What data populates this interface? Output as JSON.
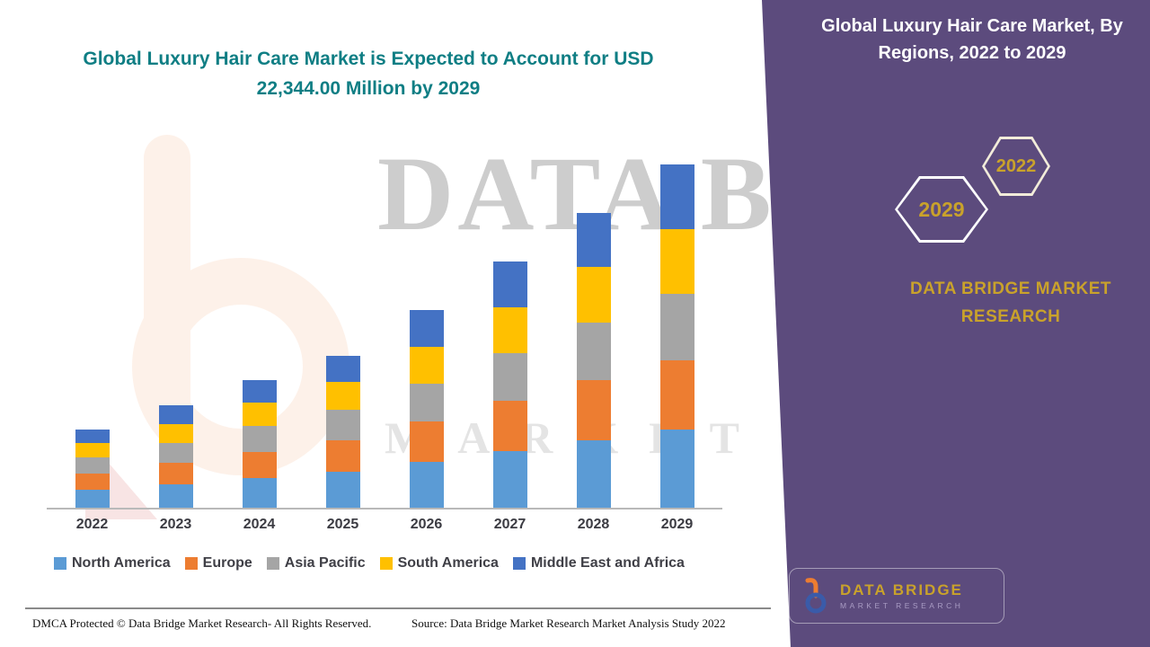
{
  "header": {
    "title_line1": "Global Luxury Hair Care Market is Expected to Account for USD",
    "title_line2": "22,344.00 Million by 2029"
  },
  "side_panel": {
    "title": "Global Luxury Hair Care Market, By Regions, 2022 to 2029",
    "hexagons": [
      {
        "label": "2029"
      },
      {
        "label": "2022"
      }
    ],
    "brand_text_line1": "DATA BRIDGE MARKET",
    "brand_text_line2": "RESEARCH",
    "logo": {
      "name": "DATA BRIDGE",
      "subtitle": "MARKET RESEARCH"
    }
  },
  "watermark": {
    "line1": "DATA BRIDGE",
    "line2": "MARKET RESEARCH"
  },
  "footer": {
    "dmca": "DMCA Protected © Data Bridge Market Research- All Rights Reserved.",
    "source": "Source: Data Bridge Market Research Market Analysis Study 2022"
  },
  "colors": {
    "teal": "#0f7e84",
    "purple": "#5c4b7d",
    "gold": "#c9a22b",
    "text_dark": "#3f3f46"
  },
  "chart_data": {
    "type": "bar",
    "subtype": "stacked",
    "title": "Global Luxury Hair Care Market, By Regions, 2022 to 2029",
    "unit": "USD Million",
    "xlabel": "",
    "ylabel": "",
    "ylim": [
      0,
      22500
    ],
    "grid": false,
    "legend_position": "bottom",
    "categories": [
      "2022",
      "2023",
      "2024",
      "2025",
      "2026",
      "2027",
      "2028",
      "2029"
    ],
    "series": [
      {
        "name": "North America",
        "color": "#5b9bd5",
        "values": [
          1200,
          1550,
          1950,
          2350,
          3000,
          3700,
          4400,
          5100
        ]
      },
      {
        "name": "Europe",
        "color": "#ed7d31",
        "values": [
          1050,
          1350,
          1700,
          2050,
          2600,
          3250,
          3900,
          4500
        ]
      },
      {
        "name": "Asia Pacific",
        "color": "#a5a5a5",
        "values": [
          1000,
          1300,
          1650,
          1950,
          2500,
          3100,
          3750,
          4350
        ]
      },
      {
        "name": "South America",
        "color": "#ffc000",
        "values": [
          950,
          1250,
          1550,
          1850,
          2400,
          3000,
          3600,
          4200
        ]
      },
      {
        "name": "Middle East and Africa",
        "color": "#4472c4",
        "values": [
          890,
          1220,
          1460,
          1690,
          2370,
          2980,
          3540,
          4194
        ]
      }
    ],
    "totals": [
      5090,
      6670,
      8310,
      9890,
      12870,
      16030,
      19190,
      22344
    ],
    "highlight_value_2029": "USD 22,344.00 Million"
  }
}
